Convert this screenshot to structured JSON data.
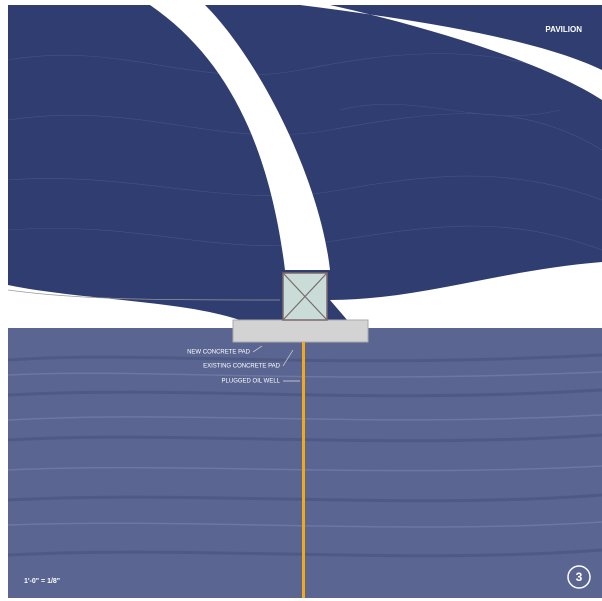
{
  "title": "PAVILION",
  "labels": [
    "NEW CONCRETE PAD",
    "EXISTING CONCRETE PAD",
    "PLUGGED OIL WELL"
  ],
  "scale": "1'-0\" = 1/8\"",
  "sheet_number": "3"
}
